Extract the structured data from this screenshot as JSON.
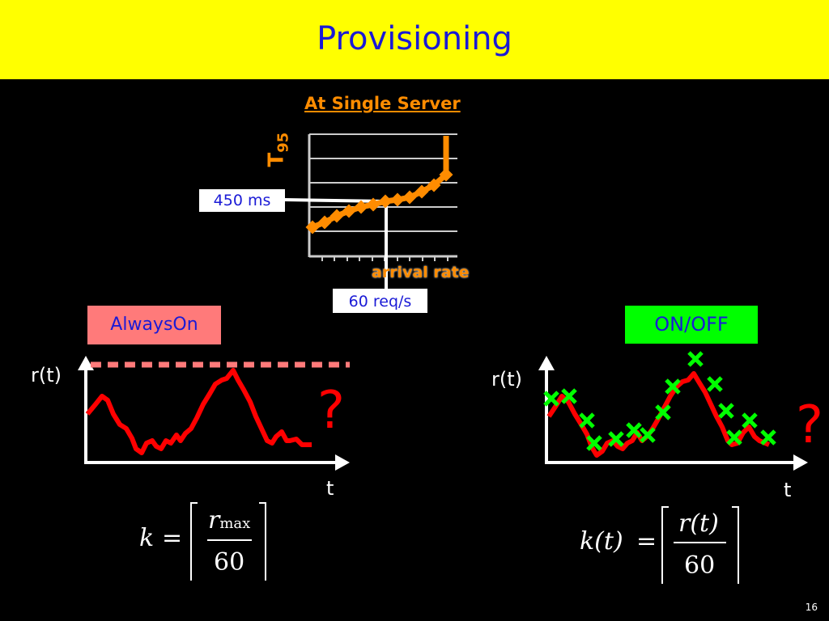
{
  "title": "Provisioning",
  "top_chart": {
    "title": "At Single Server",
    "y_label": "T",
    "y_label_sub": "95",
    "x_label": "arrival rate",
    "latency_label": "450 ms",
    "rate_label": "60 req/s"
  },
  "left_panel": {
    "label": "AlwaysOn",
    "y_axis_label": "r(t)",
    "x_axis_label": "t",
    "question": "?",
    "formula": {
      "lhs": "k",
      "eq": "=",
      "numer": "r",
      "numer_sub": "max",
      "denom": "60"
    }
  },
  "right_panel": {
    "label": "ON/OFF",
    "y_axis_label": "r(t)",
    "x_axis_label": "t",
    "question": "?",
    "formula": {
      "lhs": "k(t)",
      "eq": "=",
      "numer": "r(t)",
      "denom": "60"
    }
  },
  "page_number": "16",
  "colors": {
    "title_bg": "#ffff00",
    "title_text": "#1a1ad6",
    "accent_orange": "#ff8c00",
    "curve_red": "#ff0000",
    "marker_green": "#00ff00",
    "alwayson_bg": "#ff7a7a"
  }
}
